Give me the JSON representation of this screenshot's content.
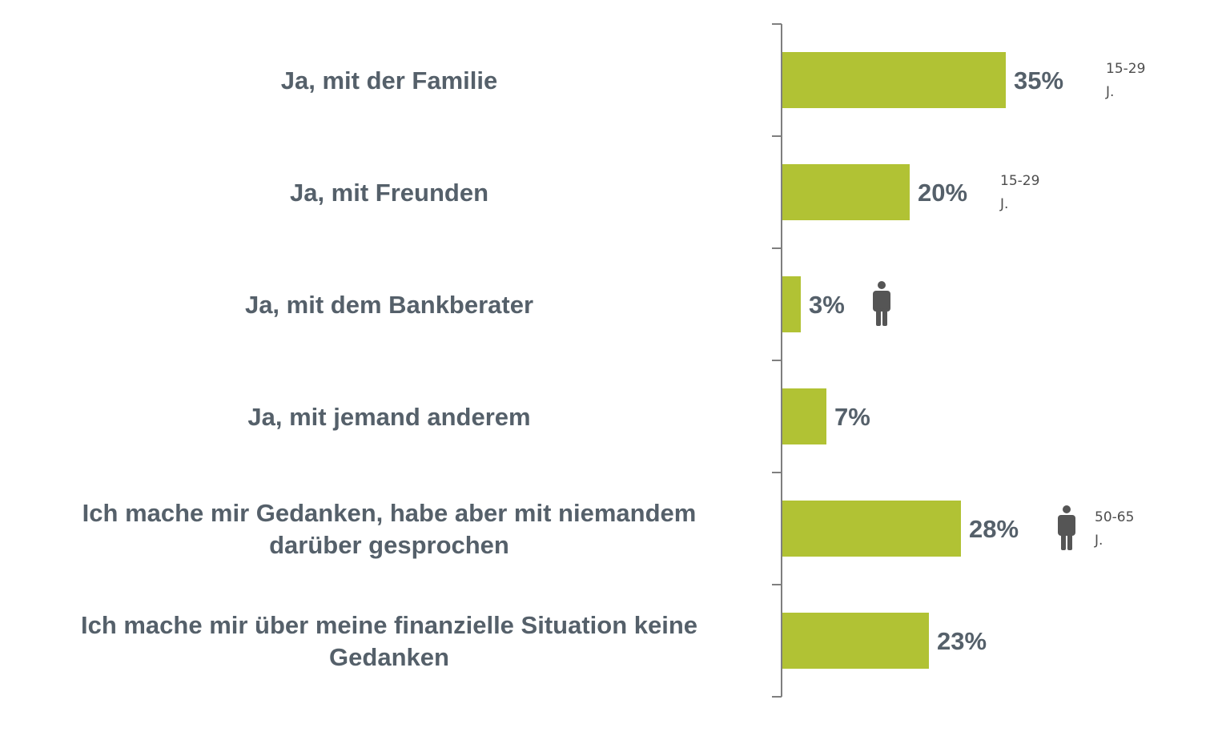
{
  "chart_data": {
    "type": "bar",
    "orientation": "horizontal",
    "categories": [
      "Ja, mit der Familie",
      "Ja, mit Freunden",
      "Ja, mit dem Bankberater",
      "Ja, mit jemand anderem",
      "Ich mache mir Gedanken, habe aber mit niemandem darüber gesprochen",
      "Ich mache mir über meine finanzielle Situation keine Gedanken"
    ],
    "category_lines": [
      [
        "Ja, mit der Familie"
      ],
      [
        "Ja, mit Freunden"
      ],
      [
        "Ja, mit dem Bankberater"
      ],
      [
        "Ja, mit jemand anderem"
      ],
      [
        "Ich mache mir Gedanken, habe aber mit niemandem",
        "darüber gesprochen"
      ],
      [
        "Ich mache mir über meine finanzielle Situation keine",
        "Gedanken"
      ]
    ],
    "values": [
      35,
      20,
      3,
      7,
      28,
      23
    ],
    "value_labels": [
      "35%",
      "20%",
      "3%",
      "7%",
      "28%",
      "23%"
    ],
    "xlim": [
      0,
      100
    ],
    "annotations": [
      {
        "category_index": 0,
        "icon": "person-icon",
        "show_icon": false,
        "text_lines": [
          "15-29",
          "J."
        ]
      },
      {
        "category_index": 1,
        "icon": "person-icon",
        "show_icon": false,
        "text_lines": [
          "15-29",
          "J."
        ]
      },
      {
        "category_index": 2,
        "icon": "person-icon",
        "show_icon": true,
        "text_lines": []
      },
      {
        "category_index": 4,
        "icon": "person-icon",
        "show_icon": true,
        "text_lines": [
          "50-65",
          "J."
        ]
      }
    ],
    "colors": {
      "bar": "#b1c234",
      "text": "#55606a",
      "axis": "#7f7f7f",
      "icon": "#555555",
      "annotation_text": "#4d4d4d"
    },
    "title": "",
    "xlabel": "",
    "ylabel": "",
    "grid": false,
    "legend": "none"
  }
}
